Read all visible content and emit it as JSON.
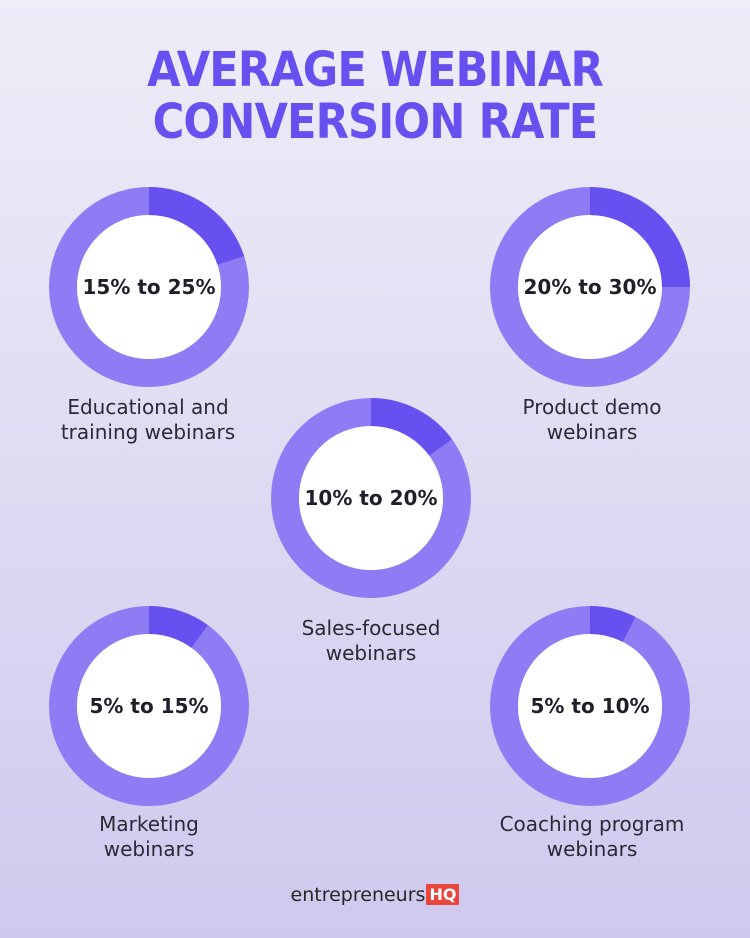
{
  "title": {
    "line1": "AVERAGE WEBINAR",
    "line2": "CONVERSION RATE"
  },
  "colors": {
    "title": "#6650F0",
    "ring_base": "#8E7CF4",
    "ring_highlight": "#6650F0",
    "hole": "#FFFFFF",
    "brand_badge": "#E8453C"
  },
  "chart_data": {
    "type": "pie",
    "variant": "donut",
    "series": [
      {
        "name": "Educational and training webinars",
        "label": "15% to 25%",
        "range": [
          15,
          25
        ],
        "highlight_fraction": 0.2
      },
      {
        "name": "Product demo webinars",
        "label": "20% to 30%",
        "range": [
          20,
          30
        ],
        "highlight_fraction": 0.25
      },
      {
        "name": "Sales-focused webinars",
        "label": "10% to 20%",
        "range": [
          10,
          20
        ],
        "highlight_fraction": 0.15
      },
      {
        "name": "Marketing webinars",
        "label": "5% to 15%",
        "range": [
          5,
          15
        ],
        "highlight_fraction": 0.1
      },
      {
        "name": "Coaching program webinars",
        "label": "5% to 10%",
        "range": [
          5,
          10
        ],
        "highlight_fraction": 0.075
      }
    ]
  },
  "categories": [
    {
      "line1": "Educational and",
      "line2": "training webinars"
    },
    {
      "line1": "Product demo",
      "line2": "webinars"
    },
    {
      "line1": "Sales-focused",
      "line2": "webinars"
    },
    {
      "line1": "Marketing",
      "line2": "webinars"
    },
    {
      "line1": "Coaching program",
      "line2": "webinars"
    }
  ],
  "brand": {
    "name": "entrepreneurs",
    "badge": "HQ"
  }
}
